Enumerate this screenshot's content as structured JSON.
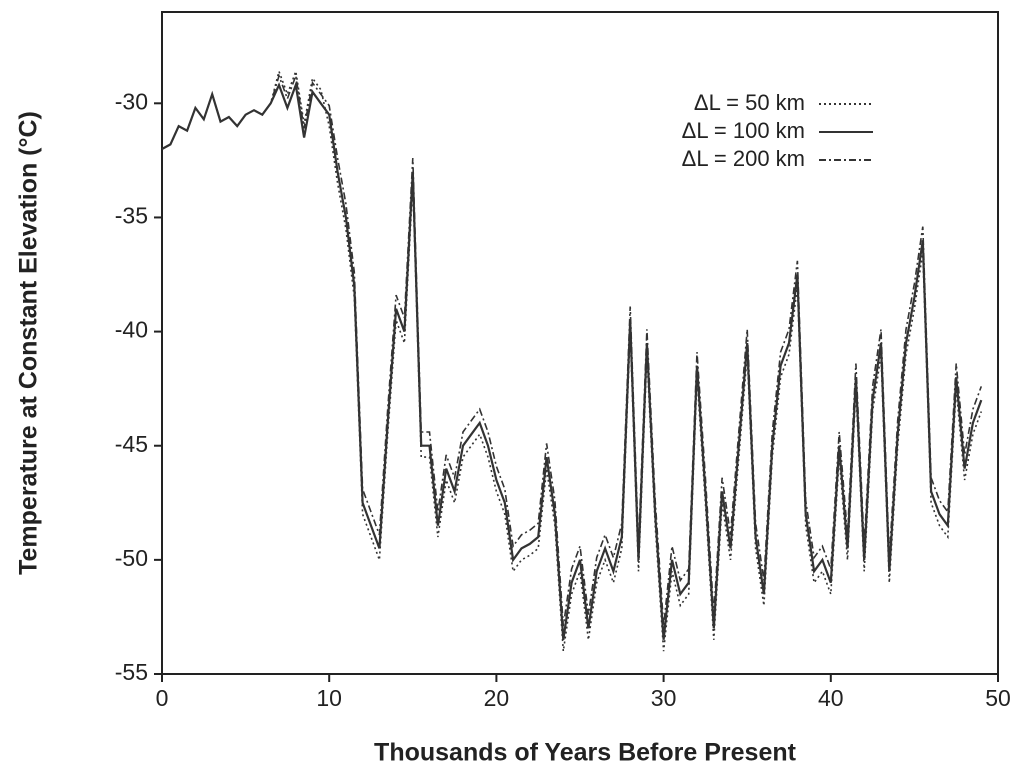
{
  "chart_data": {
    "type": "line",
    "x_label": "Thousands of Years Before Present",
    "y_label": "Temperature at Constant Elevation (°C)",
    "xlim": [
      0,
      50
    ],
    "xticks": [
      0,
      10,
      20,
      30,
      40,
      50
    ],
    "ylim": [
      -55,
      -26
    ],
    "yticks": [
      -55,
      -50,
      -45,
      -40,
      -35,
      -30
    ],
    "legend": "top-right",
    "x": [
      0,
      0.5,
      1,
      1.5,
      2,
      2.5,
      3,
      3.5,
      4,
      4.5,
      5,
      5.5,
      6,
      6.5,
      7,
      7.5,
      8,
      8.5,
      9,
      9.5,
      10,
      10.5,
      11,
      11.5,
      12,
      12.5,
      13,
      13.5,
      14,
      14.5,
      15,
      15.5,
      16,
      16.5,
      17,
      17.5,
      18,
      18.5,
      19,
      19.5,
      20,
      20.5,
      21,
      21.5,
      22,
      22.5,
      23,
      23.5,
      24,
      24.5,
      25,
      25.5,
      26,
      26.5,
      27,
      27.5,
      28,
      28.5,
      29,
      29.5,
      30,
      30.5,
      31,
      31.5,
      32,
      32.5,
      33,
      33.5,
      34,
      34.5,
      35,
      35.5,
      36,
      36.5,
      37,
      37.5,
      38,
      38.5,
      39,
      39.5,
      40,
      40.5,
      41,
      41.5,
      42,
      42.5,
      43,
      43.5,
      44,
      44.5,
      45,
      45.5,
      46,
      46.5,
      47,
      47.5,
      48,
      48.5,
      49
    ],
    "series": [
      {
        "name": "ΔL = 50 km",
        "color": "#333333",
        "dash": "2,3",
        "values": [
          -32,
          -31.8,
          -31,
          -31.2,
          -30.2,
          -30.7,
          -29.6,
          -30.8,
          -30.6,
          -31,
          -30.5,
          -30.3,
          -30.5,
          -30,
          -28.6,
          -29.6,
          -28.6,
          -30.9,
          -28.9,
          -29.4,
          -31,
          -33.5,
          -35.5,
          -38.5,
          -48,
          -49,
          -50,
          -44.5,
          -39.5,
          -40.5,
          -33.5,
          -45.5,
          -45.5,
          -49,
          -46.5,
          -47.5,
          -45.5,
          -45,
          -44.5,
          -45.5,
          -47,
          -48,
          -50.5,
          -50,
          -49.8,
          -49.5,
          -46,
          -48.5,
          -54,
          -51.5,
          -50.5,
          -53.5,
          -51,
          -50,
          -51,
          -49.5,
          -40,
          -50.5,
          -41,
          -48.5,
          -54,
          -50.5,
          -52,
          -51.5,
          -42,
          -47.5,
          -53.5,
          -47.5,
          -50,
          -45.5,
          -41,
          -49.5,
          -52,
          -45.5,
          -42,
          -41,
          -38,
          -48.5,
          -51,
          -50.5,
          -51.5,
          -45.5,
          -50,
          -42.5,
          -50.5,
          -43.5,
          -41,
          -51,
          -45,
          -41,
          -39,
          -36.5,
          -47.5,
          -48.5,
          -49,
          -42.5,
          -46.5,
          -44.5,
          -43.5
        ]
      },
      {
        "name": "ΔL = 100 km",
        "color": "#333333",
        "dash": "none",
        "values": [
          -32,
          -31.8,
          -31,
          -31.2,
          -30.2,
          -30.7,
          -29.6,
          -30.8,
          -30.6,
          -31,
          -30.5,
          -30.3,
          -30.5,
          -30,
          -29.2,
          -30.2,
          -29.2,
          -31.5,
          -29.5,
          -30,
          -30.5,
          -33,
          -35,
          -38,
          -47.5,
          -48.5,
          -49.5,
          -44,
          -39,
          -40,
          -33,
          -45,
          -45,
          -48.5,
          -46,
          -47,
          -45,
          -44.5,
          -44,
          -45,
          -46.5,
          -47.5,
          -50,
          -49.5,
          -49.3,
          -49,
          -45.5,
          -48,
          -53.5,
          -51,
          -50,
          -53,
          -50.5,
          -49.5,
          -50.5,
          -49,
          -39.5,
          -50,
          -40.5,
          -48,
          -53.5,
          -50,
          -51.5,
          -51,
          -41.5,
          -47,
          -53,
          -47,
          -49.5,
          -45,
          -40.5,
          -49,
          -51.5,
          -45,
          -41.5,
          -40.5,
          -37.5,
          -48,
          -50.5,
          -50,
          -51,
          -45,
          -49.5,
          -42,
          -50,
          -43,
          -40.5,
          -50.5,
          -44.5,
          -40.5,
          -38.5,
          -36,
          -47,
          -48,
          -48.5,
          -42,
          -46,
          -44,
          -43
        ]
      },
      {
        "name": "ΔL = 200 km",
        "color": "#333333",
        "dash": "7,3,2,3",
        "values": [
          -32,
          -31.8,
          -31,
          -31.2,
          -30.2,
          -30.7,
          -29.6,
          -30.8,
          -30.6,
          -31,
          -30.5,
          -30.3,
          -30.5,
          -30,
          -28.8,
          -29.8,
          -28.8,
          -31.1,
          -29.1,
          -29.6,
          -30.1,
          -32.4,
          -34.4,
          -37.4,
          -46.9,
          -47.9,
          -48.9,
          -43.4,
          -38.4,
          -39.4,
          -32.4,
          -44.4,
          -44.4,
          -47.9,
          -45.4,
          -46.4,
          -44.4,
          -43.9,
          -43.4,
          -44.4,
          -45.9,
          -46.9,
          -49.4,
          -48.9,
          -48.7,
          -48.4,
          -44.9,
          -47.4,
          -52.9,
          -50.4,
          -49.4,
          -52.4,
          -49.9,
          -48.9,
          -49.9,
          -48.4,
          -38.9,
          -49.4,
          -39.9,
          -47.4,
          -52.9,
          -49.4,
          -50.9,
          -50.4,
          -40.9,
          -46.4,
          -52.4,
          -46.4,
          -48.9,
          -44.4,
          -39.9,
          -48.4,
          -50.9,
          -44.4,
          -40.9,
          -39.9,
          -36.9,
          -47.4,
          -49.9,
          -49.4,
          -50.4,
          -44.4,
          -48.9,
          -41.4,
          -49.4,
          -42.4,
          -39.9,
          -49.9,
          -43.9,
          -39.9,
          -37.9,
          -35.4,
          -46.4,
          -47.4,
          -47.9,
          -41.4,
          -45.4,
          -43.4,
          -42.4
        ]
      }
    ]
  }
}
